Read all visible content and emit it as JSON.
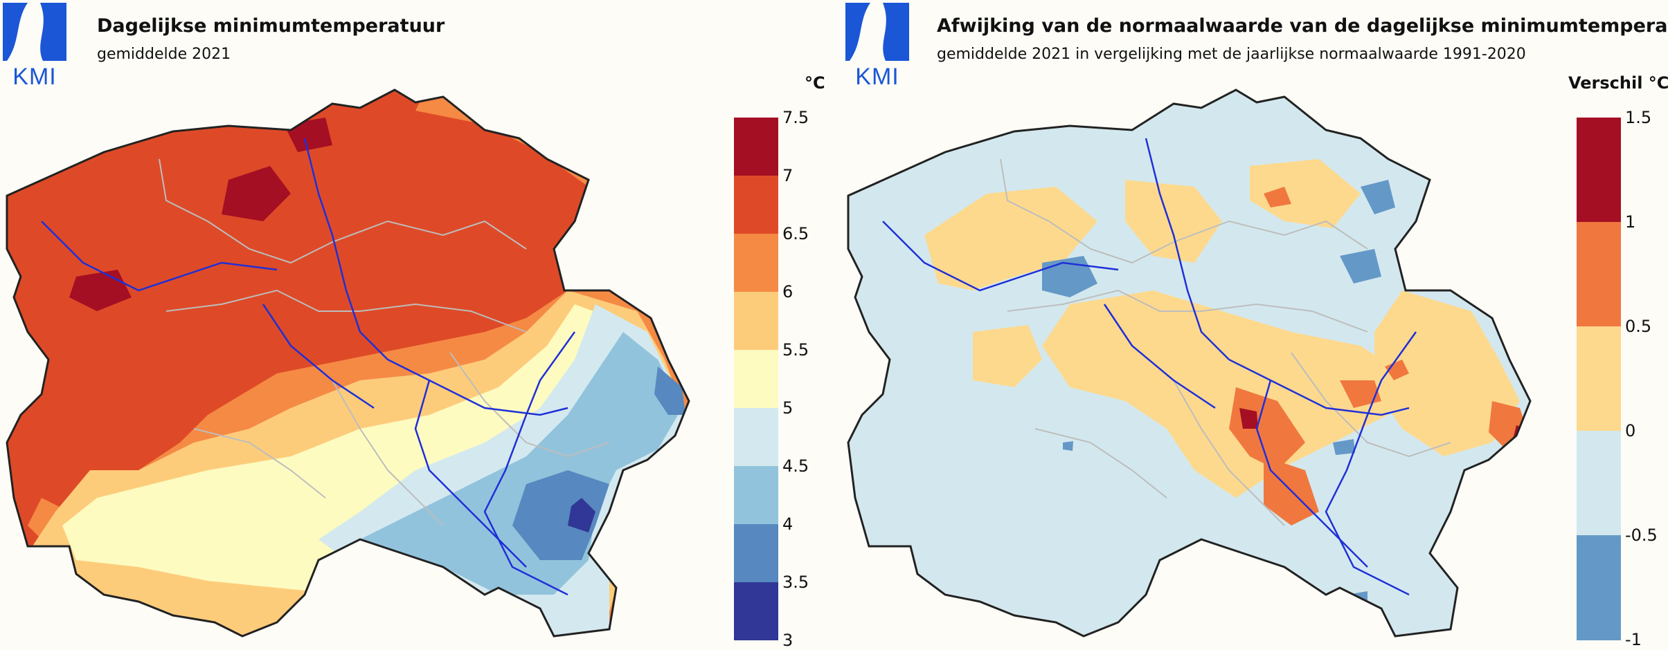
{
  "left_panel": {
    "logo_text": "KMI",
    "title": "Dagelijkse minimumtemperatuur",
    "subtitle": "gemiddelde 2021",
    "unit": "°C",
    "legend": {
      "labels": [
        "7.5",
        "7",
        "6.5",
        "6",
        "5.5",
        "5",
        "4.5",
        "4",
        "3.5",
        "3"
      ],
      "colors": [
        "#a50f23",
        "#de4a28",
        "#f58a45",
        "#fdcc7b",
        "#fdfbc0",
        "#d4e9ef",
        "#92c3dc",
        "#5788bf",
        "#303796"
      ]
    }
  },
  "right_panel": {
    "logo_text": "KMI",
    "title": "Afwijking van de normaalwaarde van de dagelijkse minimumtemperatuur",
    "subtitle": "gemiddelde 2021 in vergelijking met de jaarlijkse normaalwaarde 1991-2020",
    "unit": "Verschil °C",
    "legend": {
      "labels": [
        "1.5",
        "1",
        "0.5",
        "0",
        "-0.5",
        "-1"
      ],
      "colors": [
        "#a50f23",
        "#f0783f",
        "#fdd98e",
        "#d3e8ee",
        "#6498c7"
      ]
    }
  }
}
